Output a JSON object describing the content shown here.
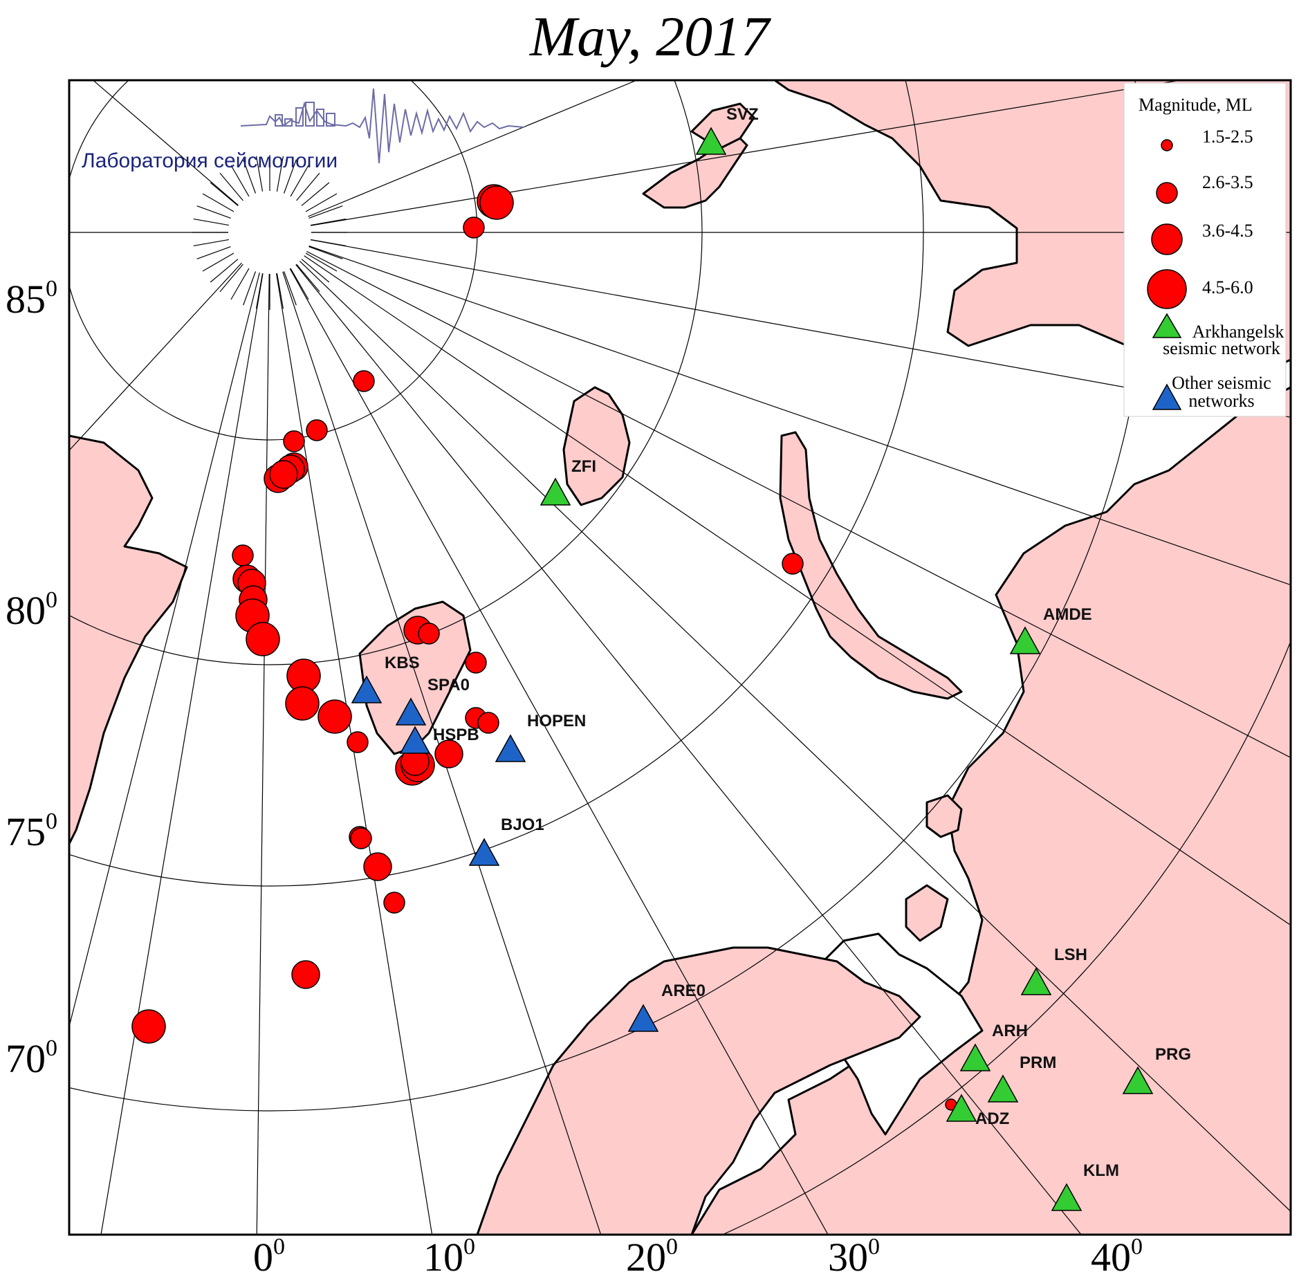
{
  "title": "May, 2017",
  "logo": {
    "text": "Лаборатория сейсмологии"
  },
  "colors": {
    "land": "#ffcccc",
    "sea": "#ffffff",
    "event": "#ff0000",
    "arkhangelsk_station": "#33cc33",
    "other_station": "#1e64c8"
  },
  "latitude_labels": [
    "85",
    "80",
    "75",
    "70"
  ],
  "longitude_labels": [
    "0",
    "10",
    "20",
    "30",
    "40"
  ],
  "degree_mark": "0",
  "legend": {
    "title": "Magnitude, ML",
    "magnitude_classes": [
      "1.5-2.5",
      "2.6-3.5",
      "3.6-4.5",
      "4.5-6.0"
    ],
    "arkhangelsk_line1": "Arkhangelsk",
    "arkhangelsk_line2": "seismic network",
    "other_line1": "Other seismic",
    "other_line2": "networks"
  },
  "stations": [
    {
      "code": "SVZ",
      "network": "arkhangelsk"
    },
    {
      "code": "ZFI",
      "network": "arkhangelsk"
    },
    {
      "code": "AMDE",
      "network": "arkhangelsk"
    },
    {
      "code": "LSH",
      "network": "arkhangelsk"
    },
    {
      "code": "ARH",
      "network": "arkhangelsk"
    },
    {
      "code": "PRM",
      "network": "arkhangelsk"
    },
    {
      "code": "PRG",
      "network": "arkhangelsk"
    },
    {
      "code": "ADZ",
      "network": "arkhangelsk"
    },
    {
      "code": "KLM",
      "network": "arkhangelsk"
    },
    {
      "code": "KBS",
      "network": "other"
    },
    {
      "code": "SPA0",
      "network": "other"
    },
    {
      "code": "HSPB",
      "network": "other"
    },
    {
      "code": "HOPEN",
      "network": "other"
    },
    {
      "code": "BJO1",
      "network": "other"
    },
    {
      "code": "ARE0",
      "network": "other"
    }
  ]
}
